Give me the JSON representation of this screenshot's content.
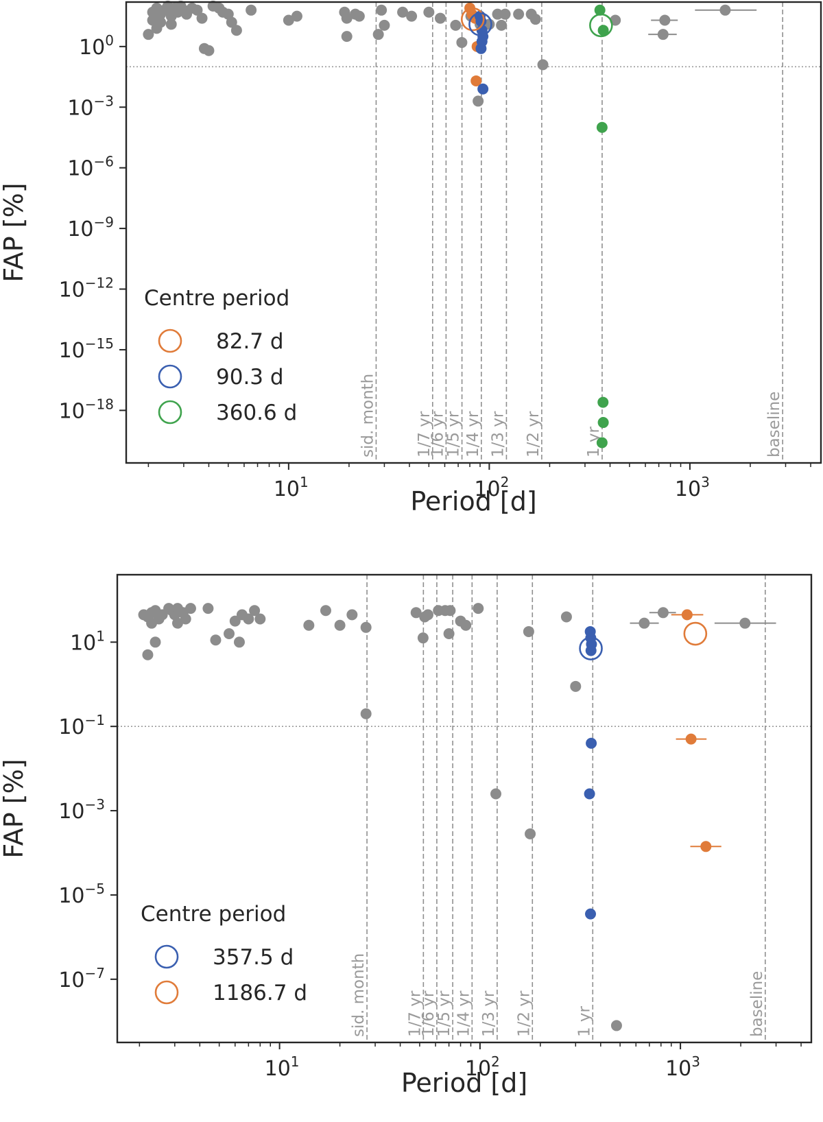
{
  "chart_data": [
    {
      "type": "scatter",
      "xscale": "log",
      "yscale": "log",
      "xlabel": "Period [d]",
      "ylabel": "FAP [%]",
      "xlim": [
        1.55,
        4500
      ],
      "ylim_exp": [
        -20.6,
        2.2
      ],
      "x_ticks": [
        {
          "value": 10,
          "base": "10",
          "exp": "1"
        },
        {
          "value": 100,
          "base": "10",
          "exp": "2"
        },
        {
          "value": 1000,
          "base": "10",
          "exp": "3"
        }
      ],
      "y_ticks": [
        {
          "exp_value": 0,
          "base": "10",
          "exp": "0"
        },
        {
          "exp_value": -3,
          "base": "10",
          "exp": "−3"
        },
        {
          "exp_value": -6,
          "base": "10",
          "exp": "−6"
        },
        {
          "exp_value": -9,
          "base": "10",
          "exp": "−9"
        },
        {
          "exp_value": -12,
          "base": "10",
          "exp": "−12"
        },
        {
          "exp_value": -15,
          "base": "10",
          "exp": "−15"
        },
        {
          "exp_value": -18,
          "base": "10",
          "exp": "−18"
        }
      ],
      "threshold_fap_exp": -1,
      "reference_lines": [
        {
          "label": "sid. month",
          "period": 27.3
        },
        {
          "label": "1/7 yr",
          "period": 52.2
        },
        {
          "label": "1/6 yr",
          "period": 60.9
        },
        {
          "label": "1/5 yr",
          "period": 73.1
        },
        {
          "label": "1/4 yr",
          "period": 91.3
        },
        {
          "label": "1/3 yr",
          "period": 121.8
        },
        {
          "label": "1/2 yr",
          "period": 182.6
        },
        {
          "label": "1 yr",
          "period": 365.25
        },
        {
          "label": "baseline",
          "period": 2900
        }
      ],
      "legend": {
        "title": "Centre period",
        "entries": [
          {
            "label": "82.7 d",
            "color": "#e07b39"
          },
          {
            "label": "90.3 d",
            "color": "#3a5fb0"
          },
          {
            "label": "360.6 d",
            "color": "#3fa34d"
          }
        ]
      },
      "centres": [
        {
          "period": 82.7,
          "fap_exp": 1.35,
          "color": "#e07b39"
        },
        {
          "period": 90.3,
          "fap_exp": 1.1,
          "color": "#3a5fb0"
        },
        {
          "period": 360.6,
          "fap_exp": 1.05,
          "color": "#3fa34d"
        }
      ],
      "series": [
        {
          "name": "other",
          "color": "#8c8c8c",
          "points": [
            [
              2.1,
              1.7
            ],
            [
              2.2,
              1.9
            ],
            [
              2.3,
              1.6
            ],
            [
              2.4,
              1.8
            ],
            [
              2.1,
              1.3
            ],
            [
              2.5,
              2.0
            ],
            [
              2.6,
              1.5
            ],
            [
              2.2,
              0.9
            ],
            [
              2.3,
              1.2
            ],
            [
              2.7,
              1.9
            ],
            [
              2.8,
              1.7
            ],
            [
              3.0,
              1.8
            ],
            [
              3.1,
              1.6
            ],
            [
              3.3,
              1.9
            ],
            [
              3.5,
              1.8
            ],
            [
              3.7,
              1.4
            ],
            [
              2.9,
              2.0
            ],
            [
              2.6,
              1.1
            ],
            [
              3.8,
              -0.1
            ],
            [
              4.0,
              -0.2
            ],
            [
              4.2,
              2.0
            ],
            [
              4.5,
              1.9
            ],
            [
              4.7,
              1.7
            ],
            [
              5.0,
              1.6
            ],
            [
              5.5,
              0.8
            ],
            [
              6.5,
              1.8
            ],
            [
              5.2,
              1.2
            ],
            [
              2.0,
              0.6
            ],
            [
              10,
              1.3
            ],
            [
              11,
              1.5
            ],
            [
              19,
              1.7
            ],
            [
              19.5,
              1.4
            ],
            [
              21.5,
              1.6
            ],
            [
              22.5,
              1.5
            ],
            [
              19.5,
              0.5
            ],
            [
              28,
              0.6
            ],
            [
              30,
              1.05
            ],
            [
              29,
              1.8
            ],
            [
              37,
              1.7
            ],
            [
              41,
              1.5
            ],
            [
              50,
              1.7
            ],
            [
              57,
              1.4
            ],
            [
              68,
              1.05
            ],
            [
              73,
              0.2
            ],
            [
              90,
              1.1
            ],
            [
              81,
              1.5
            ],
            [
              100,
              1.1
            ],
            [
              115,
              1.05
            ],
            [
              120,
              1.6
            ],
            [
              140,
              1.6
            ],
            [
              162,
              1.6
            ],
            [
              170,
              1.35
            ],
            [
              185,
              -0.9
            ],
            [
              110,
              1.6
            ],
            [
              88,
              -2.7
            ],
            [
              425,
              1.3
            ],
            [
              750,
              1.3
            ],
            [
              735,
              0.6
            ],
            [
              1500,
              1.8
            ]
          ],
          "xerr_points": [
            {
              "period": 750,
              "fap_exp": 1.3,
              "lo": 640,
              "hi": 870
            },
            {
              "period": 735,
              "fap_exp": 0.6,
              "lo": 620,
              "hi": 860
            },
            {
              "period": 1500,
              "fap_exp": 1.8,
              "lo": 1060,
              "hi": 2150
            }
          ]
        },
        {
          "name": "82.7 d",
          "color": "#e07b39",
          "points": [
            [
              80,
              1.9
            ],
            [
              82,
              1.6
            ],
            [
              85,
              1.4
            ],
            [
              87,
              0.0
            ],
            [
              86,
              -1.7
            ]
          ]
        },
        {
          "name": "90.3 d",
          "color": "#3a5fb0",
          "points": [
            [
              90,
              1.5
            ],
            [
              91,
              1.25
            ],
            [
              92,
              0.8
            ],
            [
              93,
              0.5
            ],
            [
              92,
              0.25
            ],
            [
              91,
              -0.1
            ],
            [
              93,
              -2.1
            ]
          ]
        },
        {
          "name": "360.6 d",
          "color": "#3fa34d",
          "points": [
            [
              356,
              1.8
            ],
            [
              370,
              0.8
            ],
            [
              365,
              -4.0
            ],
            [
              369,
              -17.6
            ],
            [
              370,
              -18.6
            ],
            [
              365,
              -19.6
            ]
          ]
        }
      ]
    },
    {
      "type": "scatter",
      "xscale": "log",
      "yscale": "log",
      "xlabel": "Period [d]",
      "ylabel": "FAP [%]",
      "xlim": [
        1.55,
        4500
      ],
      "ylim_exp": [
        -8.5,
        2.6
      ],
      "x_ticks": [
        {
          "value": 10,
          "base": "10",
          "exp": "1"
        },
        {
          "value": 100,
          "base": "10",
          "exp": "2"
        },
        {
          "value": 1000,
          "base": "10",
          "exp": "3"
        }
      ],
      "y_ticks": [
        {
          "exp_value": 1,
          "base": "10",
          "exp": "1"
        },
        {
          "exp_value": -1,
          "base": "10",
          "exp": "−1"
        },
        {
          "exp_value": -3,
          "base": "10",
          "exp": "−3"
        },
        {
          "exp_value": -5,
          "base": "10",
          "exp": "−5"
        },
        {
          "exp_value": -7,
          "base": "10",
          "exp": "−7"
        }
      ],
      "threshold_fap_exp": -1,
      "reference_lines": [
        {
          "label": "sid. month",
          "period": 27.3
        },
        {
          "label": "1/7 yr",
          "period": 52.2
        },
        {
          "label": "1/6 yr",
          "period": 60.9
        },
        {
          "label": "1/5 yr",
          "period": 73.1
        },
        {
          "label": "1/4 yr",
          "period": 91.3
        },
        {
          "label": "1/3 yr",
          "period": 121.8
        },
        {
          "label": "1/2 yr",
          "period": 182.6
        },
        {
          "label": "1 yr",
          "period": 365.25
        },
        {
          "label": "baseline",
          "period": 2650
        }
      ],
      "legend": {
        "title": "Centre period",
        "entries": [
          {
            "label": "357.5 d",
            "color": "#3a5fb0"
          },
          {
            "label": "1186.7 d",
            "color": "#e07b39"
          }
        ]
      },
      "centres": [
        {
          "period": 357.5,
          "fap_exp": 0.85,
          "color": "#3a5fb0"
        },
        {
          "period": 1186.7,
          "fap_exp": 1.2,
          "color": "#e07b39"
        }
      ],
      "series": [
        {
          "name": "other",
          "color": "#8c8c8c",
          "points": [
            [
              2.1,
              1.65
            ],
            [
              2.2,
              1.6
            ],
            [
              2.3,
              1.7
            ],
            [
              2.4,
              1.75
            ],
            [
              2.5,
              1.55
            ],
            [
              2.6,
              1.65
            ],
            [
              2.3,
              1.45
            ],
            [
              2.4,
              1.0
            ],
            [
              2.2,
              0.7
            ],
            [
              2.8,
              1.8
            ],
            [
              2.9,
              1.75
            ],
            [
              3.0,
              1.65
            ],
            [
              3.1,
              1.8
            ],
            [
              3.3,
              1.7
            ],
            [
              3.4,
              1.55
            ],
            [
              3.6,
              1.8
            ],
            [
              3.1,
              1.45
            ],
            [
              4.4,
              1.8
            ],
            [
              4.8,
              1.05
            ],
            [
              5.6,
              1.2
            ],
            [
              6.0,
              1.5
            ],
            [
              6.5,
              1.65
            ],
            [
              7.0,
              1.55
            ],
            [
              7.5,
              1.75
            ],
            [
              6.3,
              1.0
            ],
            [
              8.0,
              1.55
            ],
            [
              14,
              1.4
            ],
            [
              17,
              1.75
            ],
            [
              20,
              1.4
            ],
            [
              23,
              1.65
            ],
            [
              27,
              1.35
            ],
            [
              27,
              -0.7
            ],
            [
              48,
              1.7
            ],
            [
              53,
              1.6
            ],
            [
              55,
              1.65
            ],
            [
              52,
              1.1
            ],
            [
              62,
              1.75
            ],
            [
              67,
              1.75
            ],
            [
              71,
              1.75
            ],
            [
              70,
              1.2
            ],
            [
              80,
              1.5
            ],
            [
              85,
              1.4
            ],
            [
              98,
              1.8
            ],
            [
              120,
              -2.6
            ],
            [
              175,
              1.25
            ],
            [
              178,
              -3.55
            ],
            [
              270,
              1.6
            ],
            [
              300,
              -0.05
            ],
            [
              660,
              1.45
            ],
            [
              820,
              1.7
            ],
            [
              480,
              -8.1
            ],
            [
              2100,
              1.45
            ]
          ],
          "xerr_points": [
            {
              "period": 660,
              "fap_exp": 1.45,
              "lo": 560,
              "hi": 780
            },
            {
              "period": 820,
              "fap_exp": 1.7,
              "lo": 700,
              "hi": 950
            },
            {
              "period": 2100,
              "fap_exp": 1.45,
              "lo": 1480,
              "hi": 3000
            }
          ]
        },
        {
          "name": "357.5 d",
          "color": "#3a5fb0",
          "points": [
            [
              355,
              1.25
            ],
            [
              357,
              1.1
            ],
            [
              360,
              0.95
            ],
            [
              358,
              0.8
            ],
            [
              359,
              -1.4
            ],
            [
              352,
              -2.6
            ],
            [
              356,
              -5.45
            ]
          ]
        },
        {
          "name": "1186.7 d",
          "color": "#e07b39",
          "points": [
            [
              1080,
              1.65
            ],
            [
              1130,
              -1.3
            ],
            [
              1340,
              -3.85
            ]
          ],
          "xerr_points": [
            {
              "period": 1080,
              "fap_exp": 1.65,
              "lo": 900,
              "hi": 1300
            },
            {
              "period": 1130,
              "fap_exp": -1.3,
              "lo": 950,
              "hi": 1350
            },
            {
              "period": 1340,
              "fap_exp": -3.85,
              "lo": 1120,
              "hi": 1600
            }
          ]
        }
      ]
    }
  ]
}
